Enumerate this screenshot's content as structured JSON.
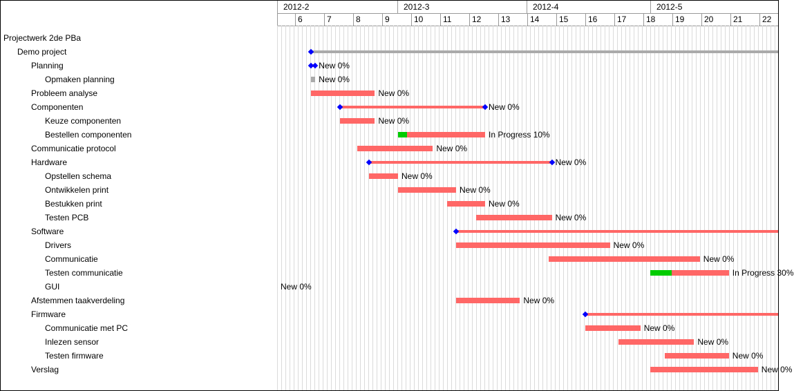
{
  "months": [
    "2012-2",
    "2012-3",
    "2012-4",
    "2012-5"
  ],
  "weeks": [
    "6",
    "7",
    "8",
    "9",
    "10",
    "11",
    "12",
    "13",
    "14",
    "15",
    "16",
    "17",
    "18",
    "19",
    "20",
    "21",
    "22"
  ],
  "tasks": [
    {
      "name": "Projectwerk 2de PBa",
      "level": 0
    },
    {
      "name": "Demo project",
      "level": 1,
      "parent": true,
      "grey": true,
      "start": 6.5,
      "end": 23.0
    },
    {
      "name": "Planning",
      "level": 2,
      "parent": true,
      "start": 6.5,
      "end": 6.65,
      "label": "New 0%"
    },
    {
      "name": "Opmaken planning",
      "level": 3,
      "grey": true,
      "start": 6.5,
      "end": 6.65,
      "label": "New 0%"
    },
    {
      "name": "Probleem analyse",
      "level": 2,
      "start": 6.5,
      "end": 8.7,
      "label": "New 0%"
    },
    {
      "name": "Componenten",
      "level": 2,
      "parent": true,
      "start": 7.5,
      "end": 12.5,
      "label": "New 0%"
    },
    {
      "name": "Keuze componenten",
      "level": 3,
      "start": 7.5,
      "end": 8.7,
      "label": "New 0%"
    },
    {
      "name": "Bestellen componenten",
      "level": 3,
      "start": 9.5,
      "end": 12.5,
      "label": "In Progress 10%",
      "progress": 10
    },
    {
      "name": "Communicatie protocol",
      "level": 2,
      "start": 8.1,
      "end": 10.7,
      "label": "New 0%"
    },
    {
      "name": "Hardware",
      "level": 2,
      "parent": true,
      "start": 8.5,
      "end": 14.8,
      "label": "New 0%"
    },
    {
      "name": "Opstellen schema",
      "level": 3,
      "start": 8.5,
      "end": 9.5,
      "label": "New 0%"
    },
    {
      "name": "Ontwikkelen print",
      "level": 3,
      "start": 9.5,
      "end": 11.5,
      "label": "New 0%"
    },
    {
      "name": "Bestukken print",
      "level": 3,
      "start": 11.2,
      "end": 12.5,
      "label": "New 0%"
    },
    {
      "name": "Testen PCB",
      "level": 3,
      "start": 12.2,
      "end": 14.8,
      "label": "New 0%"
    },
    {
      "name": "Software",
      "level": 2,
      "parent": true,
      "start": 11.5,
      "end": 23.0
    },
    {
      "name": "Drivers",
      "level": 3,
      "start": 11.5,
      "end": 16.8,
      "label": "New 0%"
    },
    {
      "name": "Communicatie",
      "level": 3,
      "start": 14.7,
      "end": 19.9,
      "label": "New 0%"
    },
    {
      "name": "Testen communicatie",
      "level": 3,
      "start": 18.2,
      "end": 20.9,
      "label": "In Progress 30%",
      "progress": 30
    },
    {
      "name": "GUI",
      "level": 3,
      "labelOnly": true,
      "label": "New 0%"
    },
    {
      "name": "Afstemmen taakverdeling",
      "level": 2,
      "start": 11.5,
      "end": 13.7,
      "label": "New 0%"
    },
    {
      "name": "Firmware",
      "level": 2,
      "parent": true,
      "start": 15.95,
      "end": 23.0
    },
    {
      "name": "Communicatie met PC",
      "level": 3,
      "start": 15.95,
      "end": 17.85,
      "label": "New 0%"
    },
    {
      "name": "Inlezen sensor",
      "level": 3,
      "start": 17.1,
      "end": 19.7,
      "label": "New 0%"
    },
    {
      "name": "Testen firmware",
      "level": 3,
      "start": 18.7,
      "end": 20.9,
      "label": "New 0%"
    },
    {
      "name": "Verslag",
      "level": 2,
      "start": 18.2,
      "end": 21.9,
      "label": "New 0%"
    }
  ]
}
